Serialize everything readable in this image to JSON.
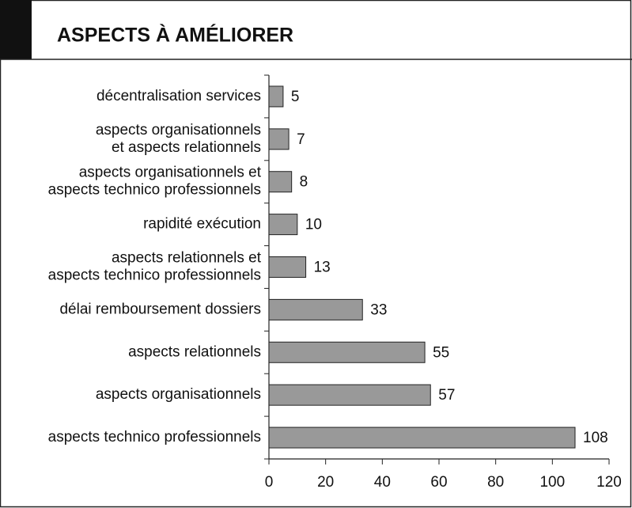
{
  "chart_data": {
    "type": "barh",
    "title": "ASPECTS À AMÉLIORER",
    "categories": [
      "décentralisation services",
      "aspects organisationnels\net aspects relationnels",
      "aspects organisationnels et\naspects technico professionnels",
      "rapidité exécution",
      "aspects relationnels et\naspects technico professionnels",
      "délai remboursement dossiers",
      "aspects relationnels",
      "aspects organisationnels",
      "aspects technico professionnels"
    ],
    "values": [
      5,
      7,
      8,
      10,
      13,
      33,
      55,
      57,
      108
    ],
    "color": "#999999",
    "xlim": [
      0,
      120
    ],
    "xticks": [
      0,
      20,
      40,
      60,
      80,
      100,
      120
    ]
  }
}
